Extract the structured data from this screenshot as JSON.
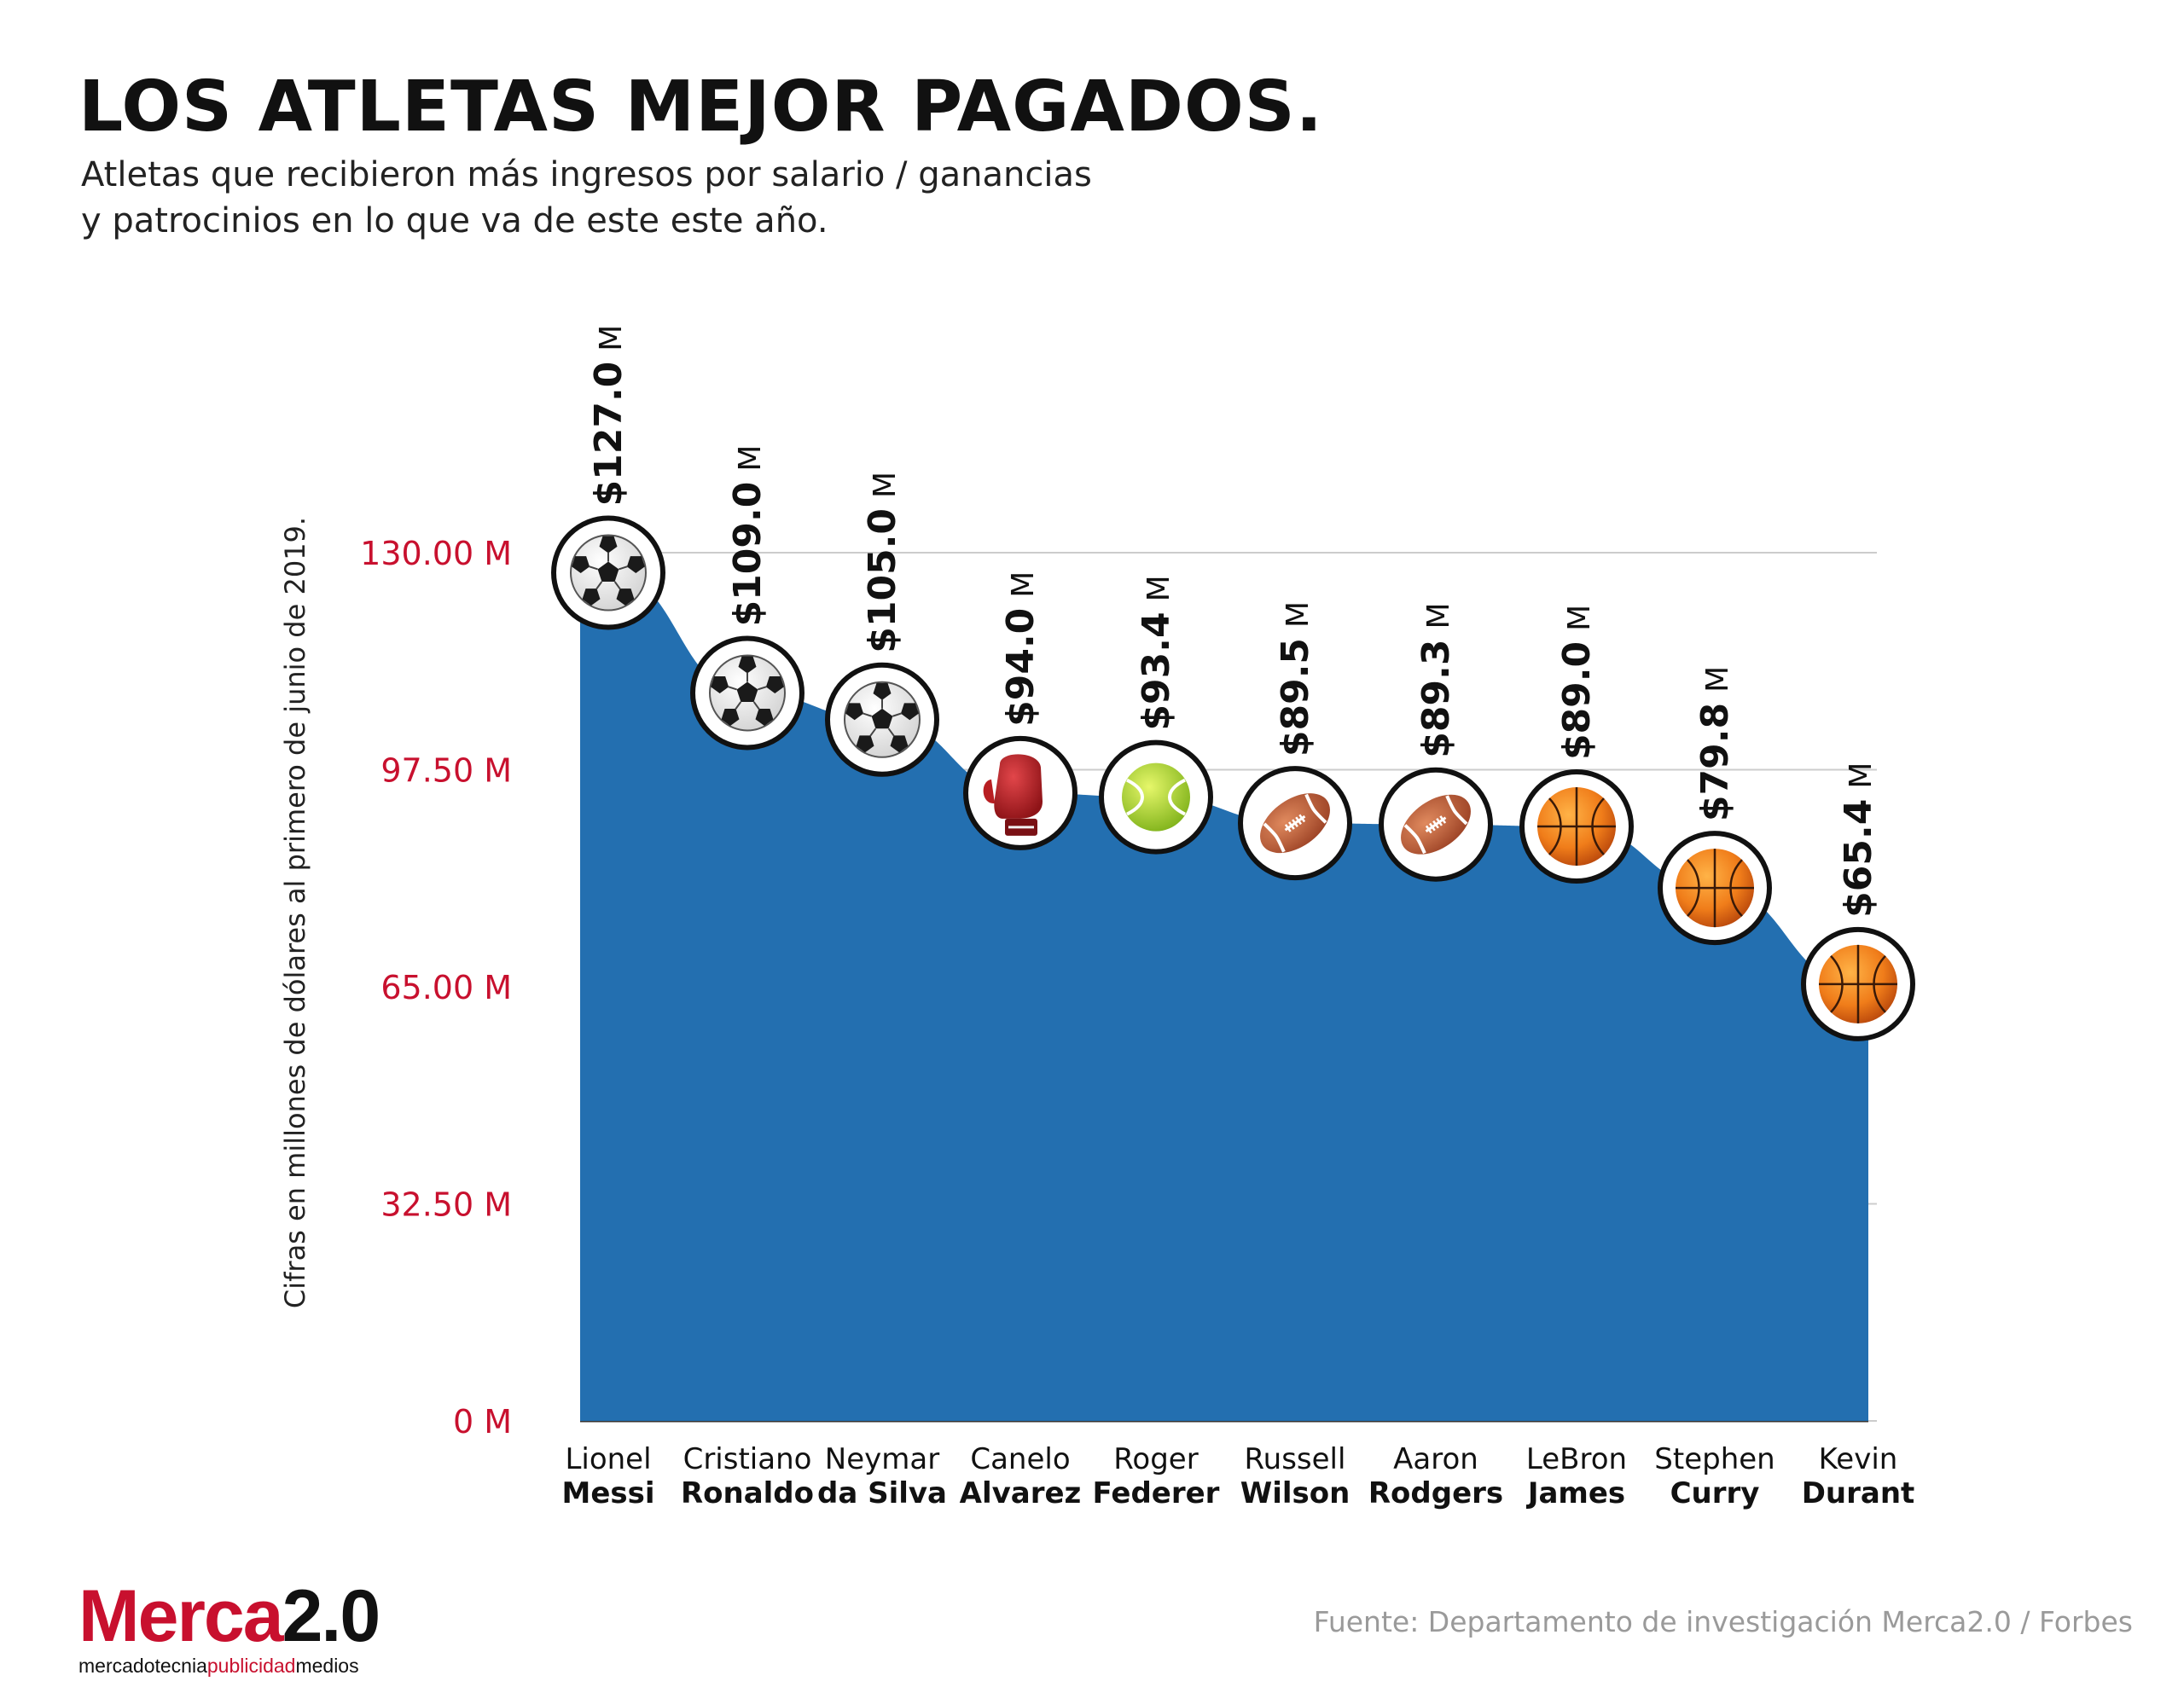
{
  "title": "LOS ATLETAS MEJOR PAGADOS.",
  "subtitle_line1": "Atletas que recibieron más ingresos por salario / ganancias",
  "subtitle_line2": "y patrocinios en lo que va de este este año.",
  "source": "Fuente: Departamento de investigación Merca2.0 / Forbes",
  "logo": {
    "main_red": "Merca",
    "main_dark": "2.0",
    "tag_part1": "mercadotecnia",
    "tag_part2": "publicidad",
    "tag_part3": "medios"
  },
  "colors": {
    "area": "#236fb0",
    "tick_text": "#c8102e",
    "grid": "#cccccc",
    "marker_border": "#111111"
  },
  "chart_data": {
    "type": "area",
    "title": "LOS ATLETAS MEJOR PAGADOS.",
    "ylabel": "Cifras en millones de dólares al primero de junio de 2019.",
    "xlabel": "",
    "ylim": [
      0,
      130
    ],
    "yticks": [
      0,
      32.5,
      65,
      97.5,
      130
    ],
    "ytick_labels": [
      "0 M",
      "32.50 M",
      "65.00 M",
      "97.50 M",
      "130.00 M"
    ],
    "grid": "horizontal",
    "categories": [
      {
        "first": "Lionel",
        "last": "Messi",
        "sport": "soccer-ball-icon"
      },
      {
        "first": "Cristiano",
        "last": "Ronaldo",
        "sport": "soccer-ball-icon"
      },
      {
        "first": "Neymar",
        "last": "da Silva",
        "sport": "soccer-ball-icon"
      },
      {
        "first": "Canelo",
        "last": "Alvarez",
        "sport": "boxing-glove-icon"
      },
      {
        "first": "Roger",
        "last": "Federer",
        "sport": "tennis-ball-icon"
      },
      {
        "first": "Russell",
        "last": "Wilson",
        "sport": "football-icon"
      },
      {
        "first": "Aaron",
        "last": "Rodgers",
        "sport": "football-icon"
      },
      {
        "first": "LeBron",
        "last": "James",
        "sport": "basketball-icon"
      },
      {
        "first": "Stephen",
        "last": "Curry",
        "sport": "basketball-icon"
      },
      {
        "first": "Kevin",
        "last": "Durant",
        "sport": "basketball-icon"
      }
    ],
    "values": [
      127.0,
      109.0,
      105.0,
      94.0,
      93.4,
      89.5,
      89.3,
      89.0,
      79.8,
      65.4
    ],
    "value_labels": [
      "$127.0",
      "$109.0",
      "$105.0",
      "$94.0",
      "$93.4",
      "$89.5",
      "$89.3",
      "$89.0",
      "$79.8",
      "$65.4"
    ],
    "value_unit": "M"
  }
}
